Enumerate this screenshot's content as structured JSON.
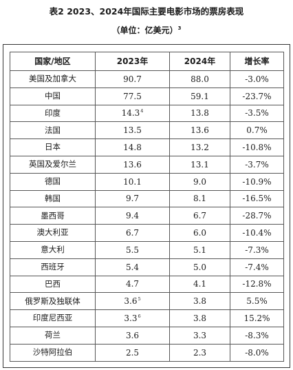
{
  "title": "表2 2023、2024年国际主要电影市场的票房表现",
  "subtitle": "（单位：亿美元）",
  "subtitle_note": "3",
  "table": {
    "headers": [
      "国家/地区",
      "2023年",
      "2024年",
      "增长率"
    ],
    "rows": [
      {
        "country": "美国及加拿大",
        "y2023": "90.7",
        "note": "",
        "y2024": "88.0",
        "growth": "-3.0%"
      },
      {
        "country": "中国",
        "y2023": "77.5",
        "note": "",
        "y2024": "59.1",
        "growth": "-23.7%"
      },
      {
        "country": "印度",
        "y2023": "14.3",
        "note": "4",
        "y2024": "13.8",
        "growth": "-3.5%"
      },
      {
        "country": "法国",
        "y2023": "13.5",
        "note": "",
        "y2024": "13.6",
        "growth": "0.7%"
      },
      {
        "country": "日本",
        "y2023": "14.8",
        "note": "",
        "y2024": "13.2",
        "growth": "-10.8%"
      },
      {
        "country": "英国及爱尔兰",
        "y2023": "13.6",
        "note": "",
        "y2024": "13.1",
        "growth": "-3.7%"
      },
      {
        "country": "德国",
        "y2023": "10.1",
        "note": "",
        "y2024": "9.0",
        "growth": "-10.9%"
      },
      {
        "country": "韩国",
        "y2023": "9.7",
        "note": "",
        "y2024": "8.1",
        "growth": "-16.5%"
      },
      {
        "country": "墨西哥",
        "y2023": "9.4",
        "note": "",
        "y2024": "6.7",
        "growth": "-28.7%"
      },
      {
        "country": "澳大利亚",
        "y2023": "6.7",
        "note": "",
        "y2024": "6.0",
        "growth": "-10.4%"
      },
      {
        "country": "意大利",
        "y2023": "5.5",
        "note": "",
        "y2024": "5.1",
        "growth": "-7.3%"
      },
      {
        "country": "西班牙",
        "y2023": "5.4",
        "note": "",
        "y2024": "5.0",
        "growth": "-7.4%"
      },
      {
        "country": "巴西",
        "y2023": "4.7",
        "note": "",
        "y2024": "4.1",
        "growth": "-12.8%"
      },
      {
        "country": "俄罗斯及独联体",
        "y2023": "3.6",
        "note": "5",
        "y2024": "3.8",
        "growth": "5.5%"
      },
      {
        "country": "印度尼西亚",
        "y2023": "3.3",
        "note": "6",
        "y2024": "3.8",
        "growth": "15.2%"
      },
      {
        "country": "荷兰",
        "y2023": "3.6",
        "note": "",
        "y2024": "3.3",
        "growth": "-8.3%"
      },
      {
        "country": "沙特阿拉伯",
        "y2023": "2.5",
        "note": "",
        "y2024": "2.3",
        "growth": "-8.0%"
      }
    ]
  }
}
